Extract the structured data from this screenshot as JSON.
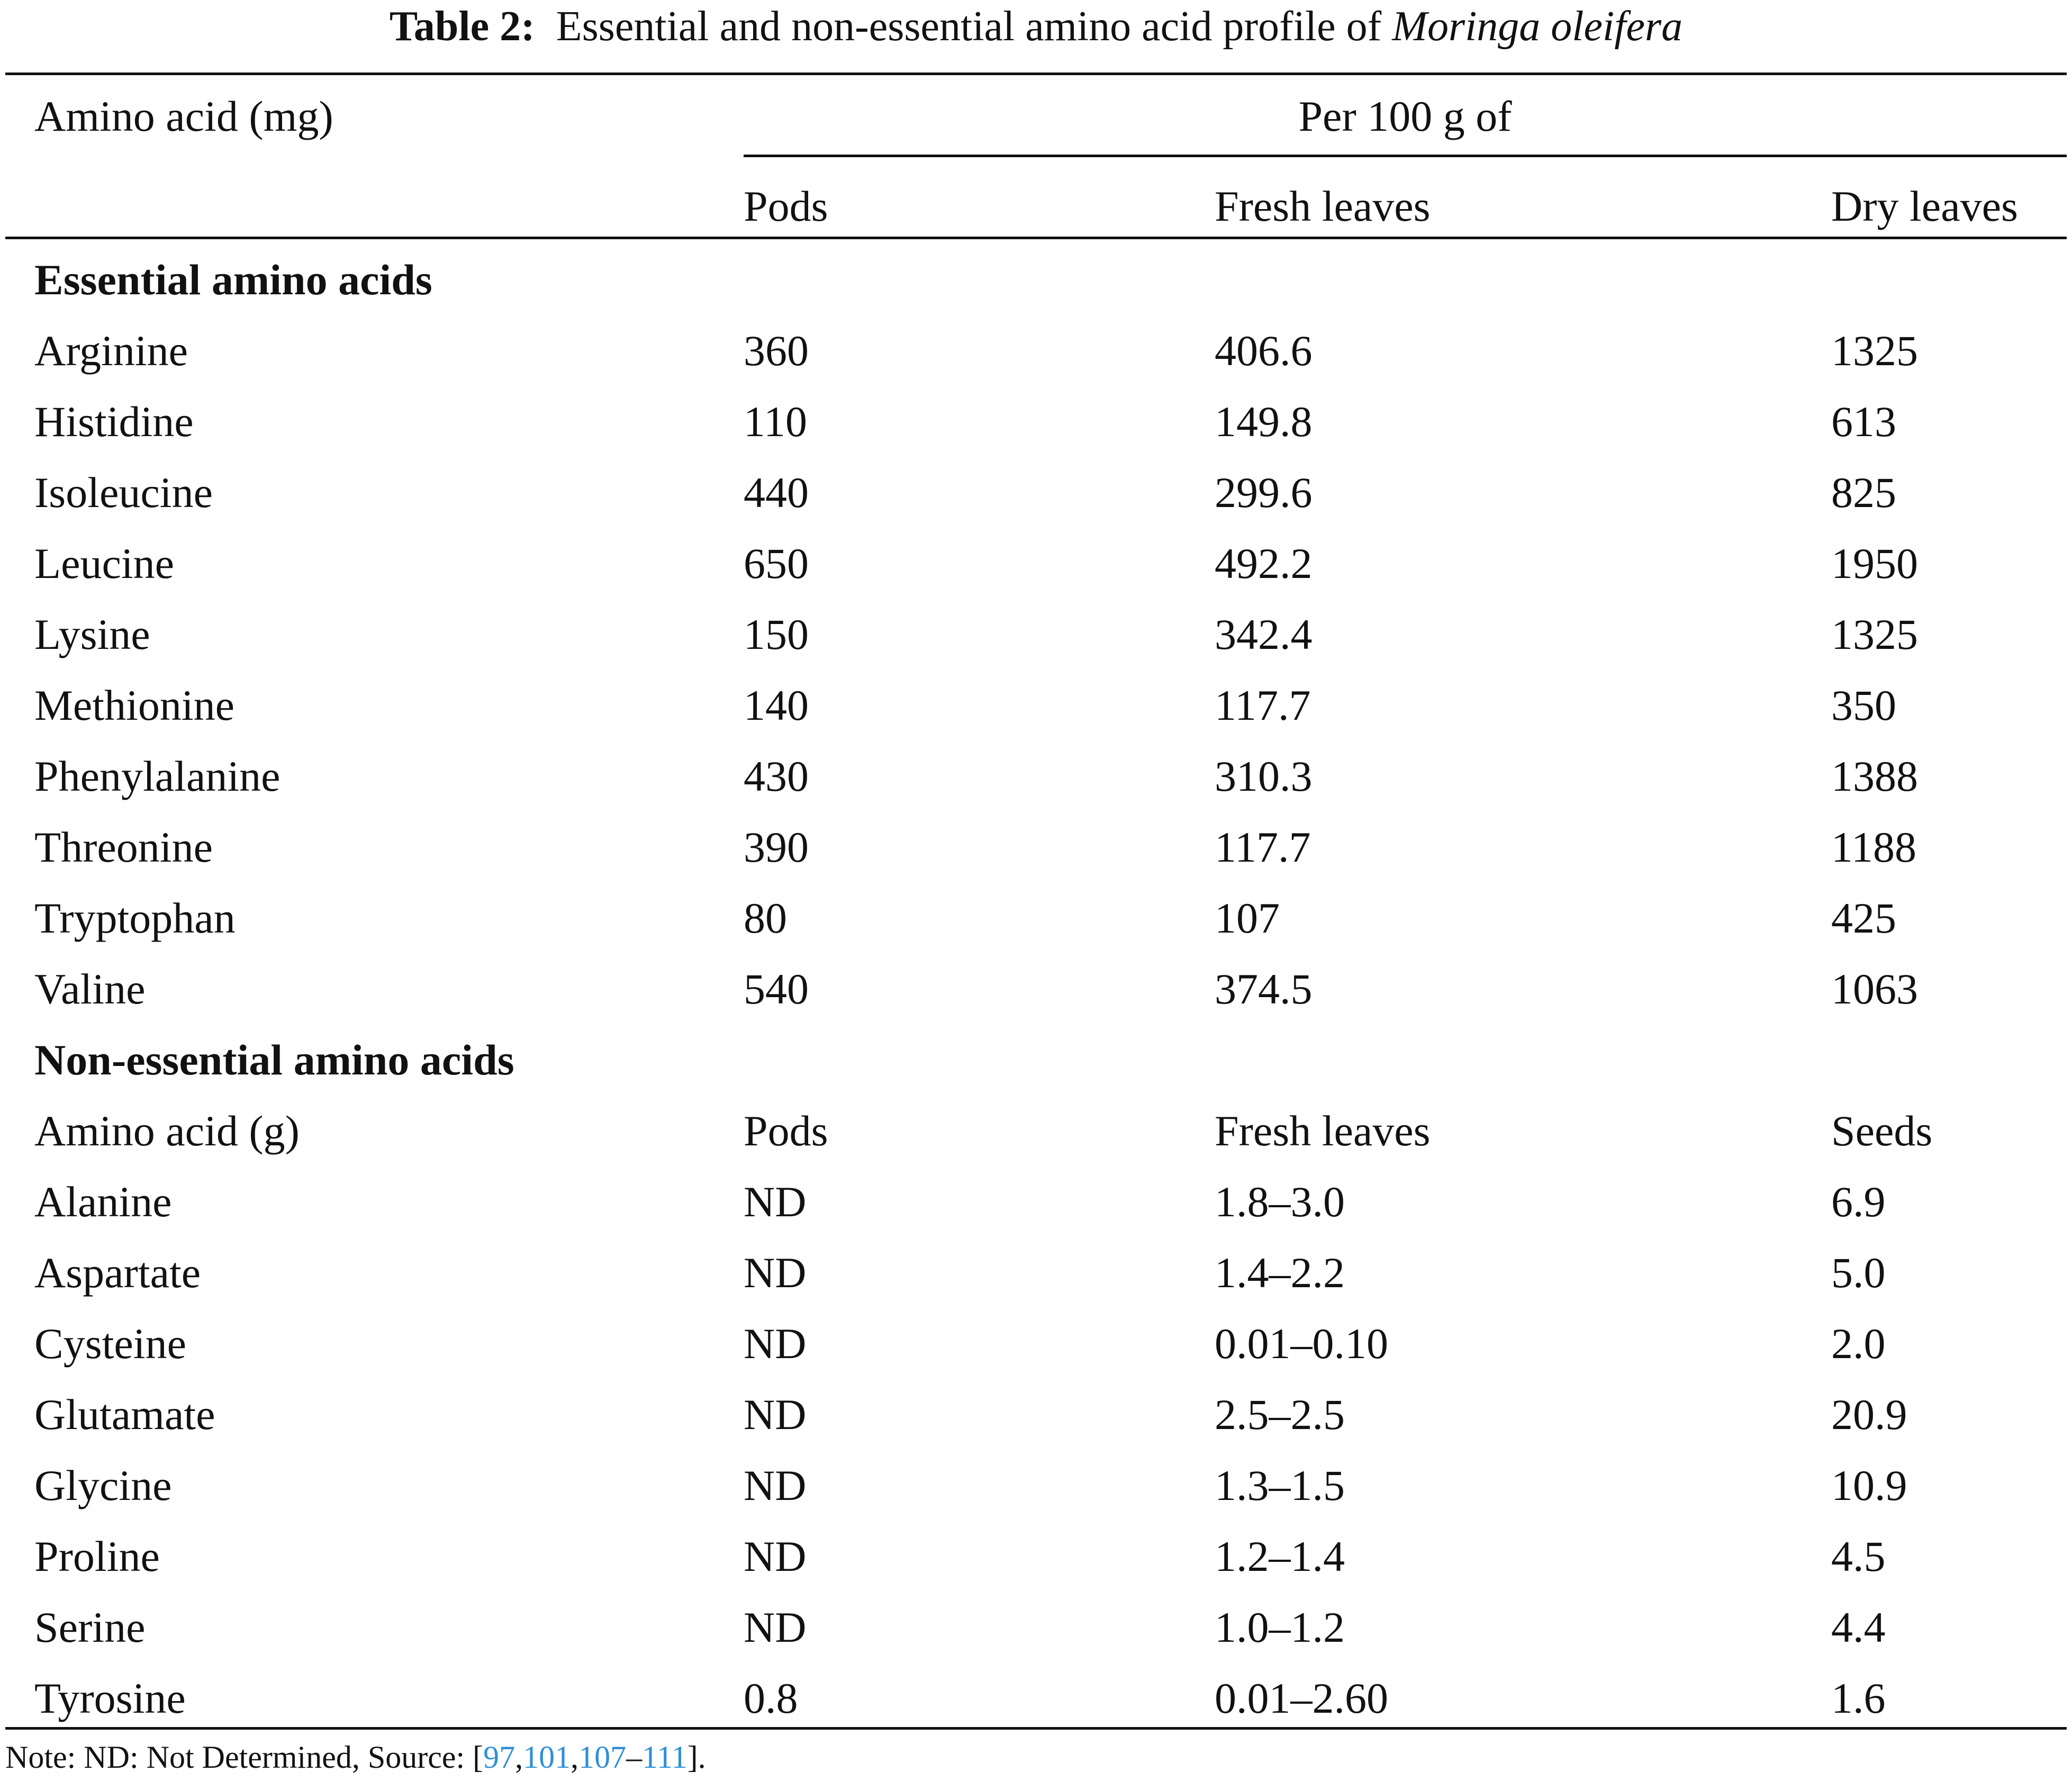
{
  "caption": {
    "label": "Table 2:",
    "text": "Essential and non-essential amino acid profile of ",
    "species": "Moringa oleifera"
  },
  "header": {
    "col0": "Amino acid (mg)",
    "group": "Per 100 g of",
    "col1": "Pods",
    "col2": "Fresh leaves",
    "col3": "Dry leaves"
  },
  "essential": {
    "title": "Essential amino acids",
    "rows": [
      [
        "Arginine",
        "360",
        "406.6",
        "1325"
      ],
      [
        "Histidine",
        "110",
        "149.8",
        "613"
      ],
      [
        "Isoleucine",
        "440",
        "299.6",
        "825"
      ],
      [
        "Leucine",
        "650",
        "492.2",
        "1950"
      ],
      [
        "Lysine",
        "150",
        "342.4",
        "1325"
      ],
      [
        "Methionine",
        "140",
        "117.7",
        "350"
      ],
      [
        "Phenylalanine",
        "430",
        "310.3",
        "1388"
      ],
      [
        "Threonine",
        "390",
        "117.7",
        "1188"
      ],
      [
        "Tryptophan",
        "80",
        "107",
        "425"
      ],
      [
        "Valine",
        "540",
        "374.5",
        "1063"
      ]
    ]
  },
  "nonessential": {
    "title": "Non-essential amino acids",
    "subheader": [
      "Amino acid (g)",
      "Pods",
      "Fresh leaves",
      "Seeds"
    ],
    "rows": [
      [
        "Alanine",
        "ND",
        "1.8–3.0",
        "6.9"
      ],
      [
        "Aspartate",
        "ND",
        "1.4–2.2",
        "5.0"
      ],
      [
        "Cysteine",
        "ND",
        "0.01–0.10",
        "2.0"
      ],
      [
        "Glutamate",
        "ND",
        "2.5–2.5",
        "20.9"
      ],
      [
        "Glycine",
        "ND",
        "1.3–1.5",
        "10.9"
      ],
      [
        "Proline",
        "ND",
        "1.2–1.4",
        "4.5"
      ],
      [
        "Serine",
        "ND",
        "1.0–1.2",
        "4.4"
      ],
      [
        "Tyrosine",
        "0.8",
        "0.01–2.60",
        "1.6"
      ]
    ]
  },
  "note": {
    "prefix": "Note: ND: Not Determined, Source: [",
    "ref1": "97",
    "sep1": ",",
    "ref2": "101",
    "sep2": ",",
    "ref3": "107",
    "sep3": "–",
    "ref4": "111",
    "suffix": "]."
  }
}
